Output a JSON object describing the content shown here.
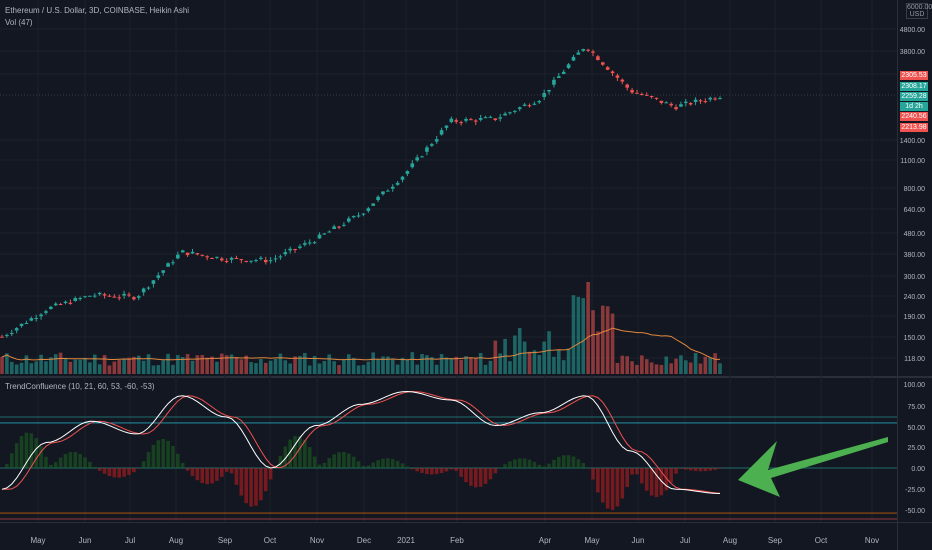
{
  "header": {
    "symbol_line": "Ethereum / U.S. Dollar, 3D, COINBASE, Heikin Ashi",
    "volume_label": "Vol (47)",
    "indicator_label": "TrendConfluence (10, 21, 60, 53, -60, -53)",
    "usd_box": "6000.00 USD"
  },
  "price_tags": [
    {
      "text": "2305.53",
      "color": "#ef5350"
    },
    {
      "text": "2308.17",
      "color": "#26a69a"
    },
    {
      "text": "2259.28",
      "color": "#26a69a"
    },
    {
      "text": "1d 2h",
      "color": "#26a69a"
    },
    {
      "text": "2240.56",
      "color": "#ef5350"
    },
    {
      "text": "2213.98",
      "color": "#ef5350"
    }
  ],
  "chart_data": [
    {
      "type": "candlestick",
      "title": "Ethereum / U.S. Dollar, 3D, COINBASE, Heikin Ashi",
      "y_scale": "log",
      "y_ticks": [
        "4800.00",
        "3800.00",
        "2300.00",
        "1400.00",
        "1100.00",
        "800.00",
        "640.00",
        "480.00",
        "380.00",
        "300.00",
        "240.00",
        "190.00",
        "150.00",
        "118.00"
      ],
      "x_ticks": [
        "May",
        "Jun",
        "Jul",
        "Aug",
        "Sep",
        "Oct",
        "Nov",
        "Dec",
        "2021",
        "Feb",
        "Apr",
        "May",
        "Jun",
        "Jul",
        "Aug",
        "Sep",
        "Oct",
        "Nov"
      ],
      "approx_close_path": [
        [
          "Apr",
          150
        ],
        [
          "May",
          205
        ],
        [
          "Jun",
          240
        ],
        [
          "Jul",
          235
        ],
        [
          "Aug",
          390
        ],
        [
          "Sep",
          360
        ],
        [
          "Oct",
          355
        ],
        [
          "Nov",
          450
        ],
        [
          "Dec",
          600
        ],
        [
          "2021",
          950
        ],
        [
          "Feb",
          1700
        ],
        [
          "Mar",
          1750
        ],
        [
          "Apr",
          2200
        ],
        [
          "May",
          4000
        ],
        [
          "Jun",
          2400
        ],
        [
          "Jul",
          2000
        ],
        [
          "Aug",
          2259.28
        ]
      ],
      "colors": {
        "up": "#26a69a",
        "down": "#ef5350"
      }
    },
    {
      "type": "bar",
      "title": "Vol (47)",
      "colors": {
        "up": "#26a69a",
        "down": "#ef5350",
        "ma": "#e0873d"
      }
    },
    {
      "type": "line",
      "title": "TrendConfluence (10, 21, 60, 53, -60, -53)",
      "y_ticks": [
        "100.00",
        "75.00",
        "50.00",
        "25.00",
        "0.00",
        "-25.00",
        "-50.00"
      ],
      "reference_levels": [
        60,
        53,
        0,
        -53,
        -60
      ],
      "approx_path": [
        [
          "Apr",
          -25
        ],
        [
          "May",
          30
        ],
        [
          "Jun",
          55
        ],
        [
          "Jul",
          40
        ],
        [
          "Aug",
          85
        ],
        [
          "Sep",
          60
        ],
        [
          "Oct",
          0
        ],
        [
          "Nov",
          50
        ],
        [
          "Dec",
          75
        ],
        [
          "2021",
          90
        ],
        [
          "Feb",
          80
        ],
        [
          "Mar",
          50
        ],
        [
          "Apr",
          65
        ],
        [
          "May",
          85
        ],
        [
          "Jun",
          20
        ],
        [
          "Jul",
          -25
        ],
        [
          "Aug",
          -30
        ]
      ],
      "colors": {
        "line": "#ffffff",
        "signal": "#ef5350",
        "histogram_up": "#1b5e20",
        "histogram_down": "#b71c1c"
      }
    }
  ]
}
